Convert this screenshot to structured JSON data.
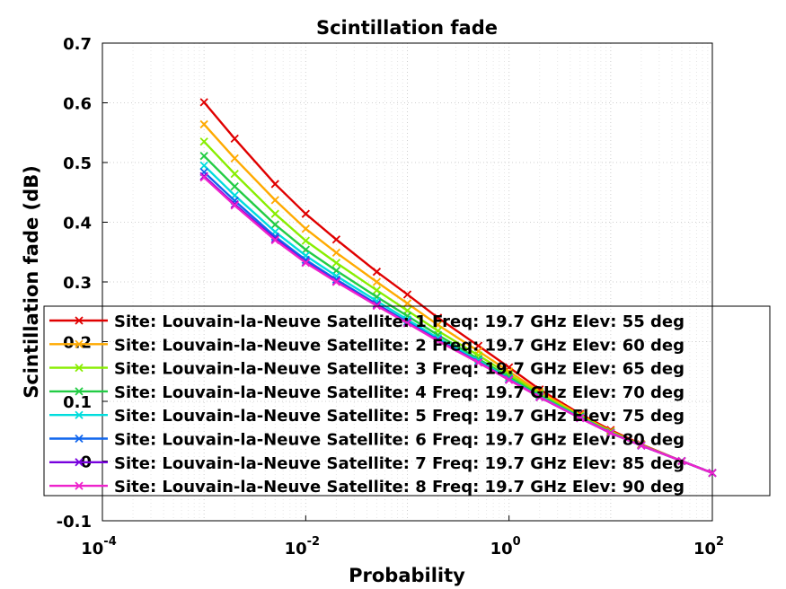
{
  "chart_data": {
    "type": "line",
    "title": "Scintillation fade",
    "xlabel": "Probability",
    "ylabel": "Scintillation fade (dB)",
    "x_scale": "log",
    "xlim": [
      0.0001,
      100
    ],
    "ylim": [
      -0.1,
      0.7
    ],
    "x_ticks": [
      {
        "value": 0.0001,
        "base": "10",
        "exp": "-4"
      },
      {
        "value": 0.01,
        "base": "10",
        "exp": "-2"
      },
      {
        "value": 1,
        "base": "10",
        "exp": "0"
      },
      {
        "value": 100,
        "base": "10",
        "exp": "2"
      }
    ],
    "y_ticks": [
      {
        "value": -0.1,
        "label": "-0.1"
      },
      {
        "value": 0,
        "label": "0"
      },
      {
        "value": 0.1,
        "label": "0.1"
      },
      {
        "value": 0.2,
        "label": "0.2"
      },
      {
        "value": 0.3,
        "label": "0.3"
      },
      {
        "value": 0.4,
        "label": "0.4"
      },
      {
        "value": 0.5,
        "label": "0.5"
      },
      {
        "value": 0.6,
        "label": "0.6"
      },
      {
        "value": 0.7,
        "label": "0.7"
      }
    ],
    "grid": true,
    "legend_position": "bottom-right",
    "x": [
      0.001,
      0.002,
      0.005,
      0.01,
      0.02,
      0.05,
      0.1,
      0.2,
      0.5,
      1,
      2,
      5,
      10,
      20,
      50,
      100
    ],
    "series": [
      {
        "name": "Site: Louvain-la-Neuve Satellite: 1 Freq: 19.7 GHz Elev: 55 deg",
        "color": "#e00000",
        "values": [
          0.601,
          0.54,
          0.464,
          0.414,
          0.371,
          0.317,
          0.279,
          0.24,
          0.193,
          0.157,
          0.12,
          0.079,
          0.052,
          0.028,
          0.0,
          -0.02
        ]
      },
      {
        "name": "Site: Louvain-la-Neuve Satellite: 2 Freq: 19.7 GHz Elev: 60 deg",
        "color": "#ffaa00",
        "values": [
          0.564,
          0.507,
          0.437,
          0.389,
          0.349,
          0.3,
          0.264,
          0.228,
          0.184,
          0.15,
          0.116,
          0.077,
          0.05,
          0.027,
          0.0,
          -0.02
        ]
      },
      {
        "name": "Site: Louvain-la-Neuve Satellite: 3 Freq: 19.7 GHz Elev: 65 deg",
        "color": "#88ee00",
        "values": [
          0.535,
          0.481,
          0.414,
          0.369,
          0.332,
          0.286,
          0.252,
          0.218,
          0.177,
          0.145,
          0.113,
          0.075,
          0.049,
          0.027,
          0.0,
          -0.02
        ]
      },
      {
        "name": "Site: Louvain-la-Neuve Satellite: 4 Freq: 19.7 GHz Elev: 70 deg",
        "color": "#22cc44",
        "values": [
          0.511,
          0.46,
          0.396,
          0.354,
          0.319,
          0.275,
          0.243,
          0.211,
          0.171,
          0.141,
          0.11,
          0.074,
          0.048,
          0.026,
          0.0,
          -0.02
        ]
      },
      {
        "name": "Site: Louvain-la-Neuve Satellite: 5 Freq: 19.7 GHz Elev: 75 deg",
        "color": "#00dddd",
        "values": [
          0.495,
          0.445,
          0.384,
          0.344,
          0.31,
          0.268,
          0.237,
          0.206,
          0.168,
          0.138,
          0.108,
          0.073,
          0.047,
          0.026,
          0.0,
          -0.02
        ]
      },
      {
        "name": "Site: Louvain-la-Neuve Satellite: 6 Freq: 19.7 GHz Elev: 80 deg",
        "color": "#1166ee",
        "values": [
          0.484,
          0.436,
          0.376,
          0.337,
          0.304,
          0.263,
          0.233,
          0.203,
          0.166,
          0.137,
          0.107,
          0.072,
          0.047,
          0.026,
          0.0,
          -0.02
        ]
      },
      {
        "name": "Site: Louvain-la-Neuve Satellite: 7 Freq: 19.7 GHz Elev: 85 deg",
        "color": "#7700dd",
        "values": [
          0.477,
          0.43,
          0.372,
          0.333,
          0.301,
          0.261,
          0.231,
          0.202,
          0.165,
          0.136,
          0.107,
          0.072,
          0.047,
          0.026,
          0.0,
          -0.02
        ]
      },
      {
        "name": "Site: Louvain-la-Neuve Satellite: 8 Freq: 19.7 GHz Elev: 90 deg",
        "color": "#ee22cc",
        "values": [
          0.475,
          0.428,
          0.37,
          0.332,
          0.3,
          0.26,
          0.231,
          0.201,
          0.165,
          0.136,
          0.107,
          0.072,
          0.047,
          0.026,
          0.0,
          -0.02
        ]
      }
    ]
  }
}
